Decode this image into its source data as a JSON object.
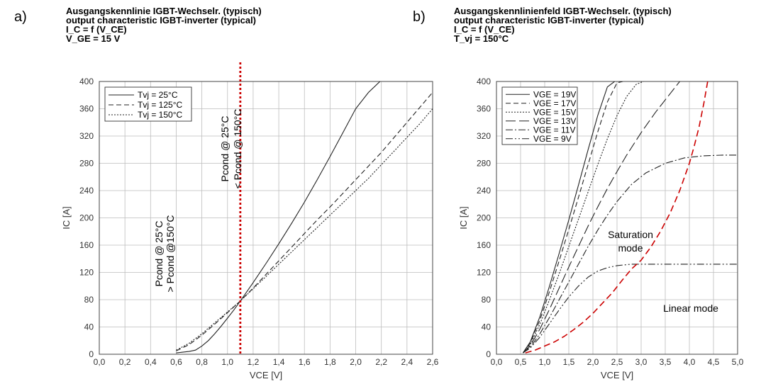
{
  "chart_data": [
    {
      "panel": "a)",
      "type": "line",
      "header": [
        "Ausgangskennlinie IGBT-Wechselr. (typisch)",
        "output characteristic IGBT-inverter (typical)",
        "I_C = f (V_CE)",
        "V_GE = 15 V"
      ],
      "xlabel": "VCE [V]",
      "ylabel": "IC [A]",
      "xlim": [
        0.0,
        2.6
      ],
      "ylim": [
        0,
        400
      ],
      "xticks": [
        "0,0",
        "0,2",
        "0,4",
        "0,6",
        "0,8",
        "1,0",
        "1,2",
        "1,4",
        "1,6",
        "1,8",
        "2,0",
        "2,2",
        "2,4",
        "2,6"
      ],
      "yticks": [
        "0",
        "40",
        "80",
        "120",
        "160",
        "200",
        "240",
        "280",
        "320",
        "360",
        "400"
      ],
      "grid": true,
      "legend_position": "top-left",
      "series": [
        {
          "name": "Tvj = 25°C",
          "dash": "solid",
          "x": [
            0.6,
            0.65,
            0.7,
            0.75,
            0.8,
            0.85,
            0.9,
            0.95,
            1.0,
            1.05,
            1.1,
            1.2,
            1.3,
            1.4,
            1.5,
            1.6,
            1.7,
            1.8,
            1.9,
            2.0,
            2.1,
            2.2
          ],
          "y": [
            2,
            3,
            4,
            6,
            12,
            20,
            30,
            41,
            53,
            65,
            78,
            105,
            133,
            162,
            192,
            223,
            256,
            290,
            325,
            360,
            384,
            402
          ]
        },
        {
          "name": "Tvj = 125°C",
          "dash": "dashed",
          "x": [
            0.6,
            0.7,
            0.8,
            0.9,
            1.0,
            1.1,
            1.2,
            1.3,
            1.4,
            1.5,
            1.6,
            1.7,
            1.8,
            1.9,
            2.0,
            2.1,
            2.2,
            2.3,
            2.4,
            2.5,
            2.6
          ],
          "y": [
            5,
            14,
            28,
            44,
            61,
            78,
            97,
            117,
            137,
            157,
            177,
            197,
            216,
            236,
            256,
            276,
            296,
            318,
            340,
            362,
            384
          ]
        },
        {
          "name": "Tvj = 150°C",
          "dash": "dotted",
          "x": [
            0.6,
            0.7,
            0.8,
            0.9,
            1.0,
            1.1,
            1.2,
            1.3,
            1.4,
            1.5,
            1.6,
            1.7,
            1.8,
            1.9,
            2.0,
            2.1,
            2.2,
            2.3,
            2.4,
            2.5,
            2.6
          ],
          "y": [
            6,
            16,
            30,
            46,
            62,
            78,
            96,
            114,
            132,
            150,
            168,
            186,
            204,
            222,
            240,
            258,
            278,
            298,
            318,
            338,
            360
          ]
        }
      ],
      "vline": {
        "x": 1.1,
        "color": "#cc0000",
        "style": "dotted"
      },
      "annotations": [
        {
          "lines": [
            "Pcond @ 25°C",
            "> Pcond @150°C"
          ]
        },
        {
          "lines": [
            "Pcond @ 25°C",
            "< Pcond @ 150°C"
          ]
        }
      ]
    },
    {
      "panel": "b)",
      "type": "line",
      "header": [
        "Ausgangskennlinienfeld IGBT-Wechselr. (typisch)",
        "output characteristic IGBT-inverter (typical)",
        "I_C = f (V_CE)",
        "T_vj = 150°C"
      ],
      "xlabel": "VCE [V]",
      "ylabel": "IC [A]",
      "xlim": [
        0.0,
        5.0
      ],
      "ylim": [
        0,
        400
      ],
      "xticks": [
        "0,0",
        "0,5",
        "1,0",
        "1,5",
        "2,0",
        "2,5",
        "3,0",
        "3,5",
        "4,0",
        "4,5",
        "5,0"
      ],
      "yticks": [
        "0",
        "40",
        "80",
        "120",
        "160",
        "200",
        "240",
        "280",
        "320",
        "360",
        "400"
      ],
      "grid": true,
      "legend_position": "top-left",
      "series": [
        {
          "name": "VGE = 19V",
          "dash": "solid",
          "x": [
            0.55,
            0.7,
            0.9,
            1.1,
            1.3,
            1.5,
            1.7,
            1.9,
            2.1,
            2.3,
            2.45
          ],
          "y": [
            2,
            18,
            55,
            100,
            148,
            197,
            248,
            300,
            350,
            392,
            400
          ]
        },
        {
          "name": "VGE = 17V",
          "dash": "dashed",
          "x": [
            0.55,
            0.7,
            0.9,
            1.1,
            1.3,
            1.5,
            1.7,
            1.9,
            2.1,
            2.3,
            2.5,
            2.62
          ],
          "y": [
            2,
            16,
            50,
            92,
            137,
            183,
            230,
            278,
            326,
            370,
            398,
            400
          ]
        },
        {
          "name": "VGE = 15V",
          "dash": "dotted",
          "x": [
            0.55,
            0.7,
            0.9,
            1.1,
            1.3,
            1.5,
            1.7,
            1.9,
            2.1,
            2.3,
            2.5,
            2.7,
            2.9,
            3.05
          ],
          "y": [
            2,
            14,
            44,
            80,
            118,
            158,
            198,
            238,
            278,
            316,
            350,
            378,
            396,
            400
          ]
        },
        {
          "name": "VGE = 13V",
          "dash": "longdash",
          "x": [
            0.55,
            0.7,
            0.9,
            1.1,
            1.3,
            1.5,
            1.7,
            1.9,
            2.1,
            2.3,
            2.5,
            2.7,
            3.0,
            3.3,
            3.6,
            3.8
          ],
          "y": [
            2,
            12,
            37,
            66,
            97,
            128,
            158,
            188,
            216,
            243,
            268,
            292,
            325,
            355,
            382,
            400
          ]
        },
        {
          "name": "VGE = 11V",
          "dash": "dashdot",
          "x": [
            0.55,
            0.7,
            0.9,
            1.1,
            1.3,
            1.5,
            1.7,
            1.9,
            2.1,
            2.3,
            2.5,
            2.8,
            3.1,
            3.5,
            3.9,
            4.3,
            4.7,
            5.0
          ],
          "y": [
            2,
            10,
            30,
            54,
            80,
            106,
            132,
            158,
            182,
            204,
            224,
            249,
            266,
            280,
            288,
            291,
            292,
            292
          ]
        },
        {
          "name": "VGE = 9V",
          "dash": "dashdotdot",
          "x": [
            0.55,
            0.7,
            0.9,
            1.1,
            1.3,
            1.5,
            1.7,
            1.9,
            2.1,
            2.3,
            2.5,
            2.8,
            3.2,
            3.6,
            4.0,
            4.5,
            5.0
          ],
          "y": [
            2,
            9,
            25,
            45,
            65,
            84,
            100,
            113,
            122,
            127,
            130,
            132,
            132,
            132,
            132,
            132,
            132
          ]
        }
      ],
      "boundary": {
        "color": "#cc0000",
        "style": "dashed",
        "x": [
          0.6,
          0.8,
          1.0,
          1.2,
          1.4,
          1.6,
          1.8,
          2.0,
          2.2,
          2.4,
          2.6,
          2.8,
          3.0,
          3.2,
          3.4,
          3.6,
          3.8,
          4.0,
          4.1,
          4.2,
          4.3,
          4.38
        ],
        "y": [
          2,
          6,
          12,
          18,
          26,
          36,
          47,
          60,
          75,
          90,
          108,
          125,
          138,
          157,
          180,
          207,
          240,
          280,
          305,
          333,
          368,
          400
        ]
      },
      "annotations": [
        {
          "lines": [
            "Saturation",
            "mode"
          ]
        },
        {
          "lines": [
            "Linear mode"
          ]
        }
      ]
    }
  ]
}
